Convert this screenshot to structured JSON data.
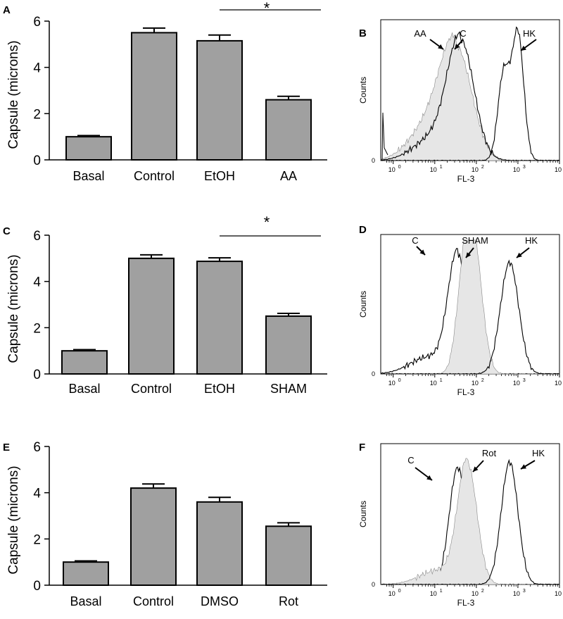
{
  "chart_data": [
    {
      "panel": "A",
      "type": "bar",
      "ylabel": "Capsule (microns)",
      "ylim": [
        0,
        6
      ],
      "yticks": [
        "0",
        "2",
        "4",
        "6"
      ],
      "categories": [
        "Basal",
        "Control",
        "EtOH",
        "AA"
      ],
      "values": [
        1.0,
        5.5,
        5.15,
        2.6
      ],
      "errors": [
        0.05,
        0.2,
        0.25,
        0.15
      ],
      "significance": {
        "from": 2,
        "to": 3,
        "label": "*"
      }
    },
    {
      "panel": "B",
      "type": "histogram",
      "xlabel": "FL-3",
      "ylabel": "Counts",
      "xtick_base": "10",
      "xtick_exponents": [
        "0",
        "1",
        "2",
        "3",
        "4"
      ],
      "ytick_zero": "0",
      "peaks": [
        {
          "label": "AA",
          "log_center": 1.5,
          "filled": true
        },
        {
          "label": "C",
          "log_center": 1.65,
          "filled": false
        },
        {
          "label": "HK",
          "log_center": 3.0,
          "filled": false
        }
      ]
    },
    {
      "panel": "C",
      "type": "bar",
      "ylabel": "Capsule (microns)",
      "ylim": [
        0,
        6
      ],
      "yticks": [
        "0",
        "2",
        "4",
        "6"
      ],
      "categories": [
        "Basal",
        "Control",
        "EtOH",
        "SHAM"
      ],
      "values": [
        1.0,
        5.0,
        4.87,
        2.5
      ],
      "errors": [
        0.05,
        0.15,
        0.15,
        0.12
      ],
      "significance": {
        "from": 2,
        "to": 3,
        "label": "*"
      }
    },
    {
      "panel": "D",
      "type": "histogram",
      "xlabel": "FL-3",
      "ylabel": "Counts",
      "xtick_base": "10",
      "xtick_exponents": [
        "0",
        "1",
        "2",
        "3",
        "4"
      ],
      "ytick_zero": "0",
      "peaks": [
        {
          "label": "C",
          "log_center": 1.55,
          "filled": false
        },
        {
          "label": "SHAM",
          "log_center": 1.9,
          "filled": true
        },
        {
          "label": "HK",
          "log_center": 2.8,
          "filled": false
        }
      ]
    },
    {
      "panel": "E",
      "type": "bar",
      "ylabel": "Capsule (microns)",
      "ylim": [
        0,
        6
      ],
      "yticks": [
        "0",
        "2",
        "4",
        "6"
      ],
      "categories": [
        "Basal",
        "Control",
        "DMSO",
        "Rot"
      ],
      "values": [
        1.0,
        4.2,
        3.6,
        2.55
      ],
      "errors": [
        0.05,
        0.18,
        0.2,
        0.15
      ],
      "significance": null
    },
    {
      "panel": "F",
      "type": "histogram",
      "xlabel": "FL-3",
      "ylabel": "Counts",
      "xtick_base": "10",
      "xtick_exponents": [
        "0",
        "1",
        "2",
        "3",
        "4"
      ],
      "ytick_zero": "0",
      "peaks": [
        {
          "label": "C",
          "log_center": 1.55,
          "filled": false
        },
        {
          "label": "Rot",
          "log_center": 1.8,
          "filled": true
        },
        {
          "label": "HK",
          "log_center": 2.8,
          "filled": false
        }
      ]
    }
  ],
  "colors": {
    "bar": "#a0a0a0",
    "fill": "#e6e6e6",
    "stroke": "#000000"
  }
}
